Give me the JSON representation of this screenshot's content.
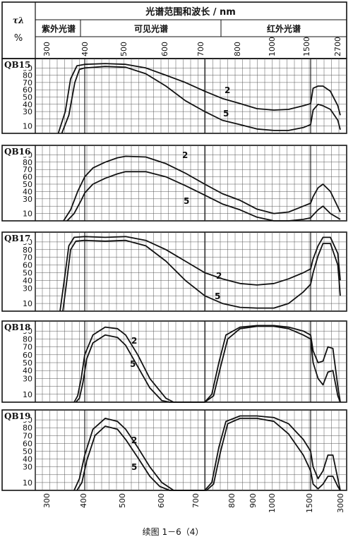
{
  "header": {
    "title": "光谱范围和波长 / nm",
    "y_symbol": "τλ",
    "y_unit": "%",
    "regions": [
      "紫外光谱",
      "可见光谱",
      "红外光谱"
    ]
  },
  "caption": "续图 1－6（4）",
  "chart_data": [
    {
      "type": "line",
      "panel_label": "QB15",
      "xscale": "piecewise",
      "x_ticks_top": [
        "300",
        "400",
        "500",
        "600",
        "700",
        "800",
        "1000",
        "1500",
        "2700"
      ],
      "yticks": [
        10,
        30,
        40,
        50,
        60,
        70,
        80,
        90
      ],
      "ylim": [
        0,
        100
      ],
      "series": [
        {
          "name": "2",
          "x": [
            325,
            345,
            360,
            378,
            400,
            450,
            500,
            550,
            600,
            650,
            700,
            750,
            800,
            900,
            1000,
            1200,
            1400,
            1500,
            1600,
            1800,
            2000,
            2300,
            2600,
            2700
          ],
          "y": [
            0,
            30,
            75,
            93,
            95,
            96,
            95,
            90,
            80,
            70,
            58,
            48,
            41,
            34,
            32,
            33,
            38,
            41,
            62,
            65,
            65,
            58,
            38,
            25
          ]
        },
        {
          "name": "5",
          "x": [
            335,
            355,
            372,
            385,
            400,
            450,
            500,
            550,
            600,
            650,
            700,
            750,
            800,
            900,
            1000,
            1200,
            1400,
            1500,
            1600,
            1800,
            2000,
            2300,
            2600,
            2700
          ],
          "y": [
            0,
            25,
            70,
            88,
            90,
            92,
            91,
            82,
            65,
            45,
            30,
            18,
            12,
            6,
            4,
            4,
            8,
            12,
            32,
            40,
            38,
            33,
            18,
            5
          ]
        }
      ]
    },
    {
      "type": "line",
      "panel_label": "QB16",
      "xscale": "piecewise",
      "yticks": [
        10,
        30,
        40,
        50,
        60,
        70,
        80,
        90
      ],
      "ylim": [
        0,
        100
      ],
      "series": [
        {
          "name": "2",
          "x": [
            340,
            360,
            380,
            400,
            420,
            450,
            480,
            500,
            550,
            600,
            650,
            700,
            750,
            800,
            900,
            1000,
            1200,
            1400,
            1500,
            1600,
            1800,
            2000,
            2300,
            2700
          ],
          "y": [
            0,
            15,
            40,
            60,
            72,
            80,
            86,
            88,
            87,
            78,
            65,
            50,
            37,
            28,
            16,
            10,
            12,
            20,
            24,
            33,
            45,
            50,
            40,
            12
          ]
        },
        {
          "name": "5",
          "x": [
            350,
            370,
            390,
            400,
            420,
            450,
            480,
            500,
            550,
            600,
            650,
            700,
            750,
            800,
            900,
            1000,
            1200,
            1400,
            1500,
            1600,
            1800,
            2000,
            2300,
            2700
          ],
          "y": [
            0,
            10,
            28,
            38,
            50,
            58,
            64,
            67,
            67,
            60,
            48,
            35,
            23,
            15,
            5,
            0,
            0,
            2,
            4,
            8,
            15,
            20,
            10,
            2
          ]
        }
      ]
    },
    {
      "type": "line",
      "panel_label": "QB17",
      "xscale": "piecewise",
      "yticks": [
        10,
        30,
        40,
        50,
        60,
        70,
        80,
        90
      ],
      "ylim": [
        0,
        100
      ],
      "series": [
        {
          "name": "2",
          "x": [
            330,
            342,
            355,
            370,
            400,
            450,
            500,
            550,
            600,
            650,
            700,
            750,
            800,
            900,
            1000,
            1200,
            1400,
            1500,
            1600,
            1800,
            2000,
            2300,
            2600,
            2700
          ],
          "y": [
            0,
            40,
            85,
            96,
            97,
            96,
            97,
            92,
            80,
            65,
            50,
            42,
            36,
            34,
            36,
            42,
            50,
            55,
            68,
            85,
            96,
            96,
            75,
            40
          ]
        },
        {
          "name": "5",
          "x": [
            338,
            348,
            360,
            375,
            400,
            450,
            500,
            550,
            600,
            650,
            700,
            750,
            800,
            900,
            1000,
            1200,
            1400,
            1500,
            1600,
            1800,
            2000,
            2300,
            2600,
            2700
          ],
          "y": [
            0,
            35,
            80,
            91,
            92,
            91,
            92,
            85,
            65,
            40,
            20,
            10,
            5,
            4,
            4,
            10,
            25,
            35,
            50,
            72,
            88,
            88,
            60,
            20
          ]
        }
      ]
    },
    {
      "type": "line",
      "panel_label": "QB18",
      "xscale": "piecewise",
      "yticks": [
        10,
        30,
        40,
        50,
        60,
        70,
        80,
        90
      ],
      "ylim": [
        0,
        100
      ],
      "series": [
        {
          "name": "2",
          "x": [
            370,
            380,
            390,
            400,
            420,
            450,
            480,
            500,
            530,
            560,
            600,
            620,
            700,
            720,
            740,
            760,
            800,
            900,
            1000,
            1200,
            1400,
            1500,
            1600,
            1800,
            2000,
            2200,
            2400,
            2600,
            2700
          ],
          "y": [
            0,
            8,
            30,
            60,
            85,
            95,
            93,
            85,
            60,
            30,
            5,
            0,
            0,
            10,
            50,
            85,
            95,
            97,
            97,
            95,
            90,
            85,
            65,
            50,
            52,
            70,
            68,
            20,
            0
          ]
        },
        {
          "name": "5",
          "x": [
            375,
            385,
            395,
            405,
            420,
            450,
            480,
            500,
            530,
            560,
            590,
            610,
            700,
            725,
            745,
            765,
            800,
            900,
            1000,
            1200,
            1400,
            1500,
            1600,
            1800,
            2000,
            2200,
            2400,
            2600,
            2700
          ],
          "y": [
            0,
            5,
            25,
            55,
            75,
            85,
            82,
            72,
            45,
            18,
            2,
            0,
            0,
            8,
            45,
            80,
            93,
            96,
            96,
            93,
            85,
            80,
            50,
            30,
            22,
            38,
            40,
            8,
            0
          ]
        }
      ]
    },
    {
      "type": "line",
      "panel_label": "QB19",
      "xscale": "piecewise",
      "x_ticks_bottom": [
        "300",
        "400",
        "500",
        "600",
        "700",
        "800",
        "900",
        "1000",
        "1500",
        "3000"
      ],
      "yticks": [
        10,
        30,
        40,
        50,
        60,
        70,
        80,
        90
      ],
      "ylim": [
        0,
        100
      ],
      "series": [
        {
          "name": "2",
          "x": [
            370,
            385,
            400,
            420,
            450,
            480,
            500,
            530,
            560,
            590,
            620,
            700,
            720,
            740,
            760,
            800,
            900,
            1000,
            1200,
            1400,
            1500,
            1600,
            1800,
            2000,
            2200,
            2400,
            2600,
            2700
          ],
          "y": [
            0,
            15,
            45,
            78,
            92,
            88,
            78,
            55,
            30,
            10,
            0,
            0,
            10,
            55,
            88,
            95,
            95,
            93,
            85,
            65,
            50,
            30,
            15,
            25,
            45,
            45,
            15,
            0
          ]
        },
        {
          "name": "5",
          "x": [
            378,
            392,
            405,
            425,
            450,
            480,
            500,
            530,
            560,
            585,
            610,
            705,
            725,
            745,
            765,
            800,
            900,
            1000,
            1200,
            1400,
            1500,
            1600,
            1800,
            2000,
            2200,
            2400,
            2600,
            2700
          ],
          "y": [
            0,
            10,
            38,
            70,
            82,
            78,
            65,
            42,
            18,
            5,
            0,
            0,
            8,
            50,
            85,
            92,
            92,
            88,
            72,
            45,
            25,
            8,
            2,
            8,
            18,
            18,
            5,
            0
          ]
        }
      ]
    }
  ]
}
